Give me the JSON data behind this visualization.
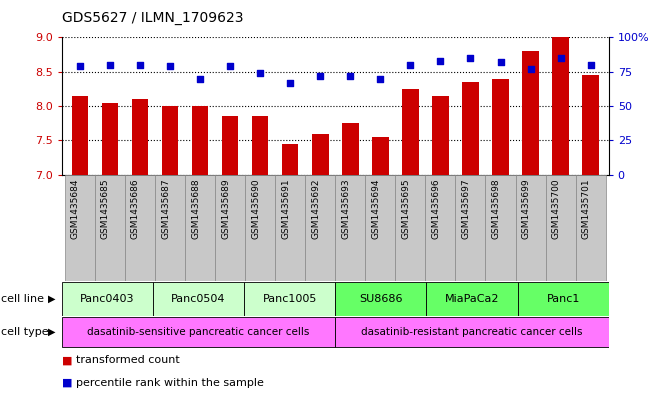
{
  "title": "GDS5627 / ILMN_1709623",
  "samples": [
    "GSM1435684",
    "GSM1435685",
    "GSM1435686",
    "GSM1435687",
    "GSM1435688",
    "GSM1435689",
    "GSM1435690",
    "GSM1435691",
    "GSM1435692",
    "GSM1435693",
    "GSM1435694",
    "GSM1435695",
    "GSM1435696",
    "GSM1435697",
    "GSM1435698",
    "GSM1435699",
    "GSM1435700",
    "GSM1435701"
  ],
  "transformed_count": [
    8.15,
    8.05,
    8.1,
    8.0,
    8.0,
    7.85,
    7.85,
    7.45,
    7.6,
    7.75,
    7.55,
    8.25,
    8.15,
    8.35,
    8.4,
    8.8,
    9.0,
    8.45
  ],
  "percentile_rank": [
    79,
    80,
    80,
    79,
    70,
    79,
    74,
    67,
    72,
    72,
    70,
    80,
    83,
    85,
    82,
    77,
    85,
    80
  ],
  "ylim_left": [
    7,
    9
  ],
  "ylim_right": [
    0,
    100
  ],
  "yticks_left": [
    7,
    7.5,
    8,
    8.5,
    9
  ],
  "yticks_right": [
    0,
    25,
    50,
    75,
    100
  ],
  "ytick_labels_right": [
    "0",
    "25",
    "50",
    "75",
    "100%"
  ],
  "bar_color": "#cc0000",
  "dot_color": "#0000cc",
  "cell_lines": [
    {
      "label": "Panc0403",
      "start": 0,
      "end": 2,
      "color": "#ccffcc"
    },
    {
      "label": "Panc0504",
      "start": 3,
      "end": 5,
      "color": "#ccffcc"
    },
    {
      "label": "Panc1005",
      "start": 6,
      "end": 8,
      "color": "#ccffcc"
    },
    {
      "label": "SU8686",
      "start": 9,
      "end": 11,
      "color": "#66ff66"
    },
    {
      "label": "MiaPaCa2",
      "start": 12,
      "end": 14,
      "color": "#66ff66"
    },
    {
      "label": "Panc1",
      "start": 15,
      "end": 17,
      "color": "#66ff66"
    }
  ],
  "cell_types": [
    {
      "label": "dasatinib-sensitive pancreatic cancer cells",
      "start": 0,
      "end": 8,
      "color": "#ff77ff"
    },
    {
      "label": "dasatinib-resistant pancreatic cancer cells",
      "start": 9,
      "end": 17,
      "color": "#ff77ff"
    }
  ],
  "legend_items": [
    {
      "label": "transformed count",
      "color": "#cc0000"
    },
    {
      "label": "percentile rank within the sample",
      "color": "#0000cc"
    }
  ],
  "bar_width": 0.55,
  "sample_box_color": "#c8c8c8",
  "sample_box_edge": "#888888"
}
